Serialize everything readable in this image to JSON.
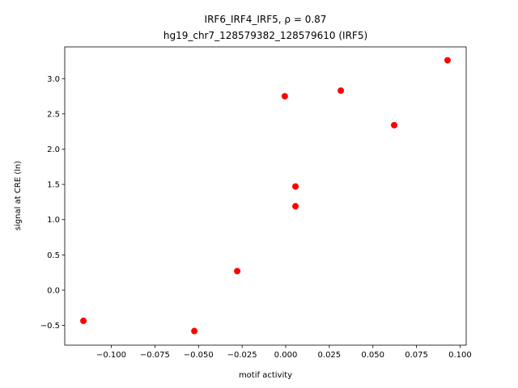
{
  "chart_data": {
    "type": "scatter",
    "title": "IRF6_IRF4_IRF5, ρ = 0.87",
    "subtitle": "hg19_chr7_128579382_128579610 (IRF5)",
    "x_label": "motif activity",
    "y_label": "signal at CRE (ln)",
    "color": "#ff0000",
    "x": [
      -0.116,
      -0.0524,
      -0.0278,
      -0.0005,
      0.0056,
      0.0056,
      0.0316,
      0.0622,
      0.0928
    ],
    "values": [
      -0.435,
      -0.58,
      0.27,
      2.75,
      1.47,
      1.19,
      2.83,
      2.34,
      3.26
    ],
    "xlim": [
      -0.1267,
      0.1035
    ],
    "ylim": [
      -0.78,
      3.45
    ],
    "xticks": [
      {
        "value": -0.1,
        "label": "−0.100"
      },
      {
        "value": -0.075,
        "label": "−0.075"
      },
      {
        "value": -0.05,
        "label": "−0.050"
      },
      {
        "value": -0.025,
        "label": "−0.025"
      },
      {
        "value": 0,
        "label": "0.000"
      },
      {
        "value": 0.025,
        "label": "0.025"
      },
      {
        "value": 0.05,
        "label": "0.050"
      },
      {
        "value": 0.075,
        "label": "0.075"
      },
      {
        "value": 0.1,
        "label": "0.100"
      }
    ],
    "yticks": [
      {
        "value": -0.5,
        "label": "−0.5"
      },
      {
        "value": 0,
        "label": "0.0"
      },
      0.5,
      {
        "value": 1,
        "label": "1.0"
      },
      1.5,
      {
        "value": 2,
        "label": "2.0"
      },
      2.5,
      {
        "value": 3,
        "label": "3.0"
      }
    ],
    "grid": false
  }
}
